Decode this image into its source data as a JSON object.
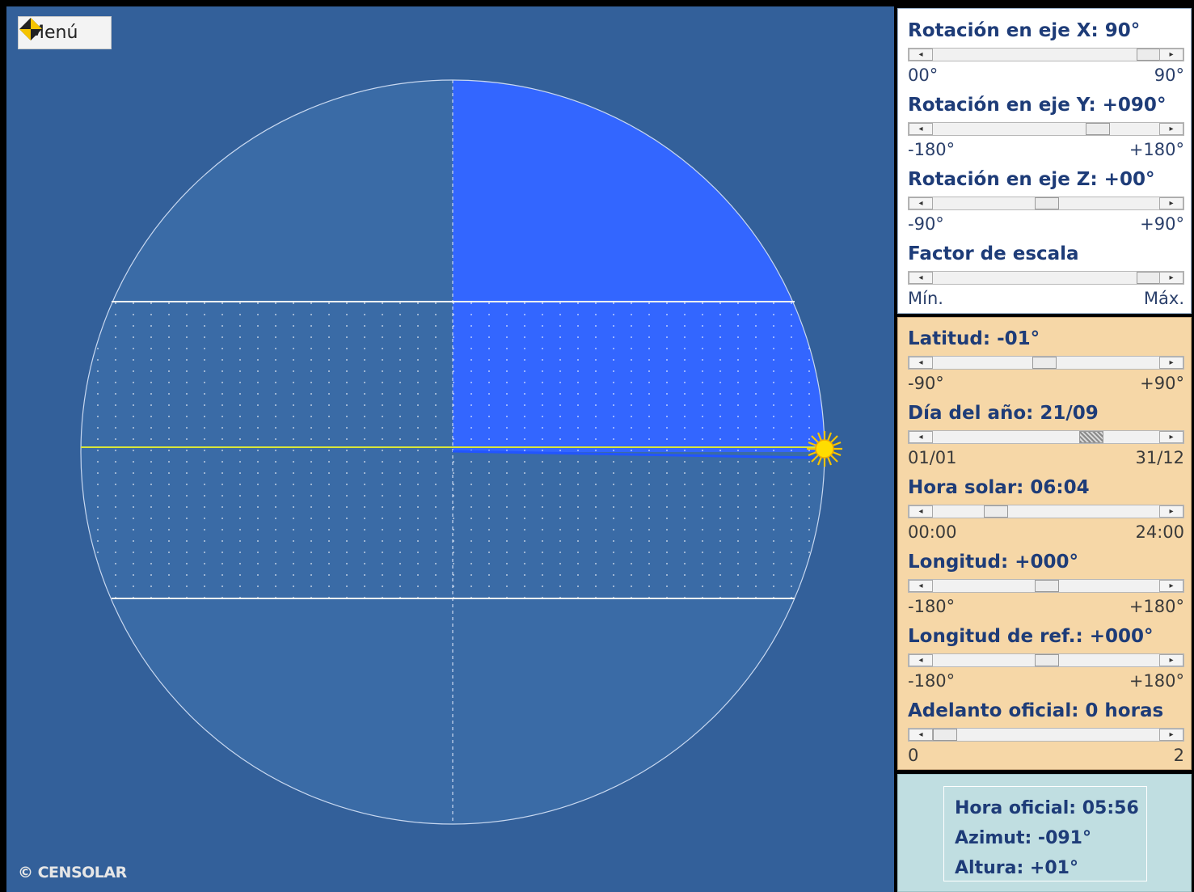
{
  "menu": {
    "label": "Menú",
    "icon": "diamond-arrow-icon"
  },
  "copyright": "© CENSOLAR",
  "globe": {
    "lit_color": "#3366ff",
    "dark_color": "#3a6ba6",
    "background": "#33609a",
    "equator_color": "#d8e63a",
    "sun_icon": "sun-icon"
  },
  "view_controls": [
    {
      "title": "Rotación en eje X:  90°",
      "min": "00°",
      "max": "90°",
      "position": 1.0
    },
    {
      "title": "Rotación en eje Y:  +090°",
      "min": "-180°",
      "max": "+180°",
      "position": 0.75
    },
    {
      "title": "Rotación en eje Z:  +00°",
      "min": "-90°",
      "max": "+90°",
      "position": 0.5
    },
    {
      "title": "Factor de escala",
      "min": "Mín.",
      "max": "Máx.",
      "position": 1.0
    }
  ],
  "location_controls": [
    {
      "title": "Latitud:  -01°",
      "min": "-90°",
      "max": "+90°",
      "position": 0.49
    },
    {
      "title": "Día del año:  21/09",
      "min": "01/01",
      "max": "31/12",
      "position": 0.72,
      "hatched": true
    },
    {
      "title": "Hora solar:  06:04",
      "min": "00:00",
      "max": "24:00",
      "position": 0.25
    },
    {
      "title": "Longitud:  +000°",
      "min": "-180°",
      "max": "+180°",
      "position": 0.5
    },
    {
      "title": "Longitud de ref.:  +000°",
      "min": "-180°",
      "max": "+180°",
      "position": 0.5
    },
    {
      "title": "Adelanto oficial:  0 horas",
      "min": "0",
      "max": "2",
      "position": 0.0
    }
  ],
  "results": {
    "hora_oficial": "Hora oficial:  05:56",
    "azimut": "Azimut:  -091°",
    "altura": "Altura:  +01°"
  }
}
